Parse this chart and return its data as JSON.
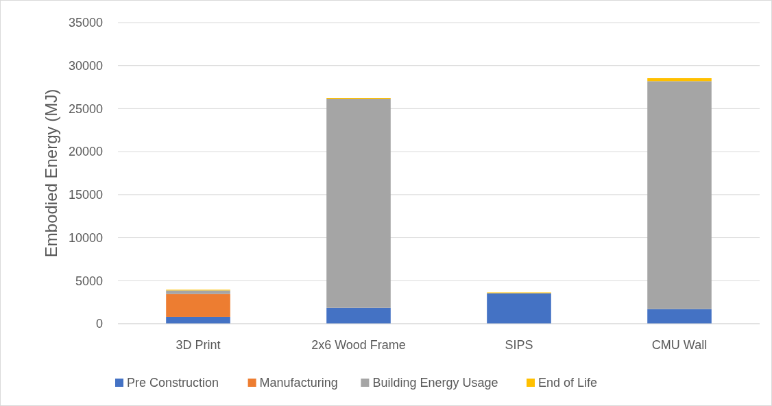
{
  "chart_data": {
    "type": "bar",
    "stacked": true,
    "ylabel": "Embodied Energy (MJ)",
    "categories": [
      "3D Print",
      "2x6 Wood Frame",
      "SIPS",
      "CMU Wall"
    ],
    "series": [
      {
        "name": "Pre Construction",
        "color": "#4472c4",
        "values": [
          800,
          1850,
          3550,
          1700
        ]
      },
      {
        "name": "Manufacturing",
        "color": "#ed7d31",
        "values": [
          2650,
          0,
          0,
          0
        ]
      },
      {
        "name": "Building Energy Usage",
        "color": "#a5a5a5",
        "values": [
          420,
          24300,
          0,
          26500
        ]
      },
      {
        "name": "End of Life",
        "color": "#ffc000",
        "values": [
          80,
          80,
          80,
          340
        ]
      }
    ],
    "ylim": [
      0,
      35000
    ],
    "yticks": [
      0,
      5000,
      10000,
      15000,
      20000,
      25000,
      30000,
      35000
    ],
    "grid": "y",
    "legend": "bottom"
  }
}
